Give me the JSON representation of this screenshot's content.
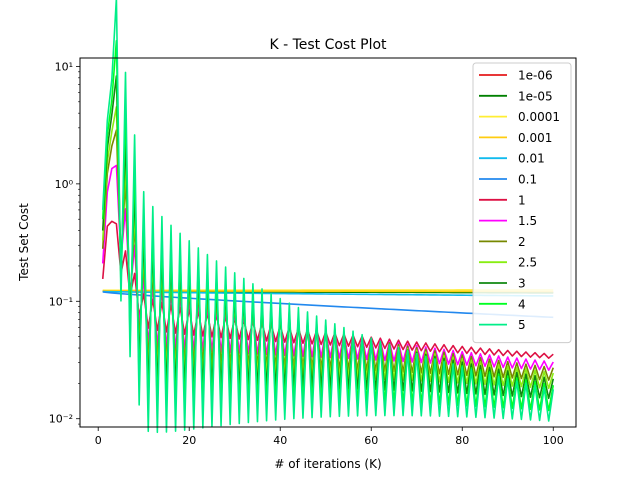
{
  "chart_data": {
    "type": "line",
    "title": "K - Test Cost Plot",
    "xlabel": "# of iterations (K)",
    "ylabel": "Test Set Cost",
    "xlim": [
      -4,
      105
    ],
    "ylim": [
      0.0085,
      11.8
    ],
    "yscale": "log",
    "x_ticks": [
      0,
      20,
      40,
      60,
      80,
      100
    ],
    "y_ticks": [
      {
        "value": 0.01,
        "label": "10⁻²"
      },
      {
        "value": 0.1,
        "label": "10⁻¹"
      },
      {
        "value": 1,
        "label": "10⁰"
      },
      {
        "value": 10,
        "label": "10¹"
      }
    ],
    "grid": false,
    "legend_position": "upper right",
    "x_range": [
      1,
      100
    ],
    "series": [
      {
        "name": "1e-06",
        "color": "#e41a1c",
        "start": 0.122,
        "end": 0.119,
        "peak": 0,
        "osc": 0
      },
      {
        "name": "1e-05",
        "color": "#008000",
        "start": 0.122,
        "end": 0.118,
        "peak": 0,
        "osc": 0
      },
      {
        "name": "0.0001",
        "color": "#ffee33",
        "start": 0.124,
        "end": 0.125,
        "peak": 0,
        "osc": 0
      },
      {
        "name": "0.001",
        "color": "#ffcc11",
        "start": 0.123,
        "end": 0.121,
        "peak": 0,
        "osc": 0
      },
      {
        "name": "0.01",
        "color": "#11bbee",
        "start": 0.121,
        "end": 0.111,
        "peak": 0,
        "osc": 0
      },
      {
        "name": "0.1",
        "color": "#2288ee",
        "start": 0.12,
        "end": 0.073,
        "peak": 0,
        "osc": 0
      },
      {
        "name": "1",
        "color": "#dd1144",
        "start": 0.155,
        "end": 0.034,
        "peak": 0.48,
        "osc": 0.06
      },
      {
        "name": "1.5",
        "color": "#ff00ff",
        "start": 0.21,
        "end": 0.028,
        "peak": 1.35,
        "osc": 0.12
      },
      {
        "name": "2",
        "color": "#778800",
        "start": 0.28,
        "end": 0.024,
        "peak": 2.1,
        "osc": 0.18
      },
      {
        "name": "2.5",
        "color": "#88ee11",
        "start": 0.33,
        "end": 0.021,
        "peak": 2.8,
        "osc": 0.22
      },
      {
        "name": "3",
        "color": "#118811",
        "start": 0.4,
        "end": 0.018,
        "peak": 3.9,
        "osc": 0.28
      },
      {
        "name": "4",
        "color": "#00ff22",
        "start": 0.5,
        "end": 0.015,
        "peak": 5.2,
        "osc": 0.36
      },
      {
        "name": "5",
        "color": "#00ee88",
        "start": 0.6,
        "end": 0.013,
        "peak": 7.8,
        "osc": 0.45
      }
    ]
  }
}
